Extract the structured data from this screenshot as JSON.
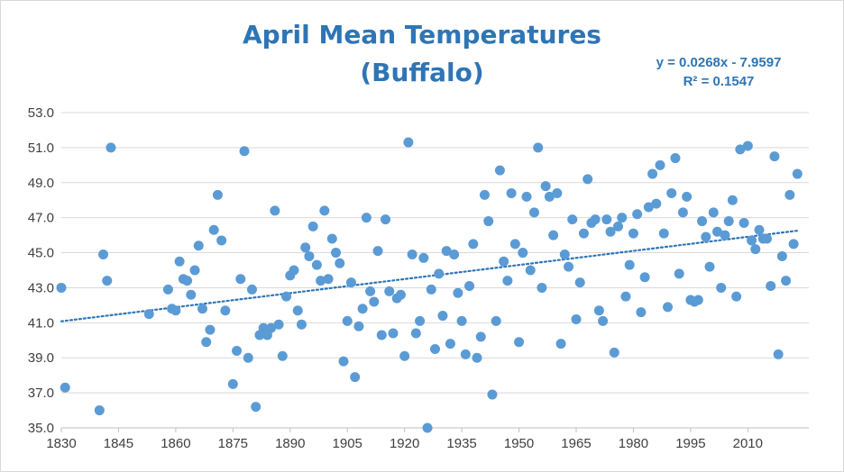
{
  "chart_data": {
    "type": "scatter",
    "title_line1": "April Mean Temperatures",
    "title_line2": "(Buffalo)",
    "trendline": {
      "equation": "y = 0.0268x - 7.9597",
      "r2_label": "R² = 0.1547",
      "slope": 0.0268,
      "intercept": -7.9597,
      "style": "dotted"
    },
    "xlim": [
      1830,
      2026
    ],
    "ylim": [
      35.0,
      53.0
    ],
    "x_ticks": [
      "1830",
      "1845",
      "1860",
      "1875",
      "1890",
      "1905",
      "1920",
      "1935",
      "1950",
      "1965",
      "1980",
      "1995",
      "2010"
    ],
    "y_ticks": [
      "35.0",
      "37.0",
      "39.0",
      "41.0",
      "43.0",
      "45.0",
      "47.0",
      "49.0",
      "51.0",
      "53.0"
    ],
    "grid": "horizontal",
    "marker_color": "#5b9bd5",
    "trend_color": "#2e75b6",
    "points": [
      [
        1830,
        43.0
      ],
      [
        1831,
        37.3
      ],
      [
        1840,
        36.0
      ],
      [
        1841,
        44.9
      ],
      [
        1842,
        43.4
      ],
      [
        1843,
        51.0
      ],
      [
        1853,
        41.5
      ],
      [
        1858,
        42.9
      ],
      [
        1859,
        41.8
      ],
      [
        1860,
        41.7
      ],
      [
        1861,
        44.5
      ],
      [
        1862,
        43.5
      ],
      [
        1863,
        43.4
      ],
      [
        1864,
        42.6
      ],
      [
        1865,
        44.0
      ],
      [
        1866,
        45.4
      ],
      [
        1867,
        41.8
      ],
      [
        1868,
        39.9
      ],
      [
        1869,
        40.6
      ],
      [
        1870,
        46.3
      ],
      [
        1871,
        48.3
      ],
      [
        1872,
        45.7
      ],
      [
        1873,
        41.7
      ],
      [
        1875,
        37.5
      ],
      [
        1876,
        39.4
      ],
      [
        1877,
        43.5
      ],
      [
        1878,
        50.8
      ],
      [
        1879,
        39.0
      ],
      [
        1880,
        42.9
      ],
      [
        1881,
        36.2
      ],
      [
        1882,
        40.3
      ],
      [
        1883,
        40.7
      ],
      [
        1884,
        40.3
      ],
      [
        1885,
        40.7
      ],
      [
        1886,
        47.4
      ],
      [
        1887,
        40.9
      ],
      [
        1888,
        39.1
      ],
      [
        1889,
        42.5
      ],
      [
        1890,
        43.7
      ],
      [
        1891,
        44.0
      ],
      [
        1892,
        41.7
      ],
      [
        1893,
        40.9
      ],
      [
        1894,
        45.3
      ],
      [
        1895,
        44.8
      ],
      [
        1896,
        46.5
      ],
      [
        1897,
        44.3
      ],
      [
        1898,
        43.4
      ],
      [
        1899,
        47.4
      ],
      [
        1900,
        43.5
      ],
      [
        1901,
        45.8
      ],
      [
        1902,
        45.0
      ],
      [
        1903,
        44.4
      ],
      [
        1904,
        38.8
      ],
      [
        1905,
        41.1
      ],
      [
        1906,
        43.3
      ],
      [
        1907,
        37.9
      ],
      [
        1908,
        40.8
      ],
      [
        1909,
        41.8
      ],
      [
        1910,
        47.0
      ],
      [
        1911,
        42.8
      ],
      [
        1912,
        42.2
      ],
      [
        1913,
        45.1
      ],
      [
        1914,
        40.3
      ],
      [
        1915,
        46.9
      ],
      [
        1916,
        42.8
      ],
      [
        1917,
        40.4
      ],
      [
        1918,
        42.4
      ],
      [
        1919,
        42.6
      ],
      [
        1920,
        39.1
      ],
      [
        1921,
        51.3
      ],
      [
        1922,
        44.9
      ],
      [
        1923,
        40.4
      ],
      [
        1924,
        41.1
      ],
      [
        1925,
        44.7
      ],
      [
        1926,
        35.0
      ],
      [
        1927,
        42.9
      ],
      [
        1928,
        39.5
      ],
      [
        1929,
        43.8
      ],
      [
        1930,
        41.4
      ],
      [
        1931,
        45.1
      ],
      [
        1932,
        39.8
      ],
      [
        1933,
        44.9
      ],
      [
        1934,
        42.7
      ],
      [
        1935,
        41.1
      ],
      [
        1936,
        39.2
      ],
      [
        1937,
        43.1
      ],
      [
        1938,
        45.5
      ],
      [
        1939,
        39.0
      ],
      [
        1940,
        40.2
      ],
      [
        1941,
        48.3
      ],
      [
        1942,
        46.8
      ],
      [
        1943,
        36.9
      ],
      [
        1944,
        41.1
      ],
      [
        1945,
        49.7
      ],
      [
        1946,
        44.5
      ],
      [
        1947,
        43.4
      ],
      [
        1948,
        48.4
      ],
      [
        1949,
        45.5
      ],
      [
        1950,
        39.9
      ],
      [
        1951,
        45.0
      ],
      [
        1952,
        48.2
      ],
      [
        1953,
        44.0
      ],
      [
        1954,
        47.3
      ],
      [
        1955,
        51.0
      ],
      [
        1956,
        43.0
      ],
      [
        1957,
        48.8
      ],
      [
        1958,
        48.2
      ],
      [
        1959,
        46.0
      ],
      [
        1960,
        48.4
      ],
      [
        1961,
        39.8
      ],
      [
        1962,
        44.9
      ],
      [
        1963,
        44.2
      ],
      [
        1964,
        46.9
      ],
      [
        1965,
        41.2
      ],
      [
        1966,
        43.3
      ],
      [
        1967,
        46.1
      ],
      [
        1968,
        49.2
      ],
      [
        1969,
        46.7
      ],
      [
        1970,
        46.9
      ],
      [
        1971,
        41.7
      ],
      [
        1972,
        41.1
      ],
      [
        1973,
        46.9
      ],
      [
        1974,
        46.2
      ],
      [
        1975,
        39.3
      ],
      [
        1976,
        46.5
      ],
      [
        1977,
        47.0
      ],
      [
        1978,
        42.5
      ],
      [
        1979,
        44.3
      ],
      [
        1980,
        46.1
      ],
      [
        1981,
        47.2
      ],
      [
        1982,
        41.6
      ],
      [
        1983,
        43.6
      ],
      [
        1984,
        47.6
      ],
      [
        1985,
        49.5
      ],
      [
        1986,
        47.8
      ],
      [
        1987,
        50.0
      ],
      [
        1988,
        46.1
      ],
      [
        1989,
        41.9
      ],
      [
        1990,
        48.4
      ],
      [
        1991,
        50.4
      ],
      [
        1992,
        43.8
      ],
      [
        1993,
        47.3
      ],
      [
        1994,
        48.2
      ],
      [
        1995,
        42.3
      ],
      [
        1996,
        42.2
      ],
      [
        1997,
        42.3
      ],
      [
        1998,
        46.8
      ],
      [
        1999,
        45.9
      ],
      [
        2000,
        44.2
      ],
      [
        2001,
        47.3
      ],
      [
        2002,
        46.2
      ],
      [
        2003,
        43.0
      ],
      [
        2004,
        46.0
      ],
      [
        2005,
        46.8
      ],
      [
        2006,
        48.0
      ],
      [
        2007,
        42.5
      ],
      [
        2008,
        50.9
      ],
      [
        2009,
        46.7
      ],
      [
        2010,
        51.1
      ],
      [
        2011,
        45.7
      ],
      [
        2012,
        45.2
      ],
      [
        2013,
        46.3
      ],
      [
        2014,
        45.8
      ],
      [
        2015,
        45.8
      ],
      [
        2016,
        43.1
      ],
      [
        2017,
        50.5
      ],
      [
        2018,
        39.2
      ],
      [
        2019,
        44.8
      ],
      [
        2020,
        43.4
      ],
      [
        2021,
        48.3
      ],
      [
        2022,
        45.5
      ],
      [
        2023,
        49.5
      ]
    ]
  }
}
